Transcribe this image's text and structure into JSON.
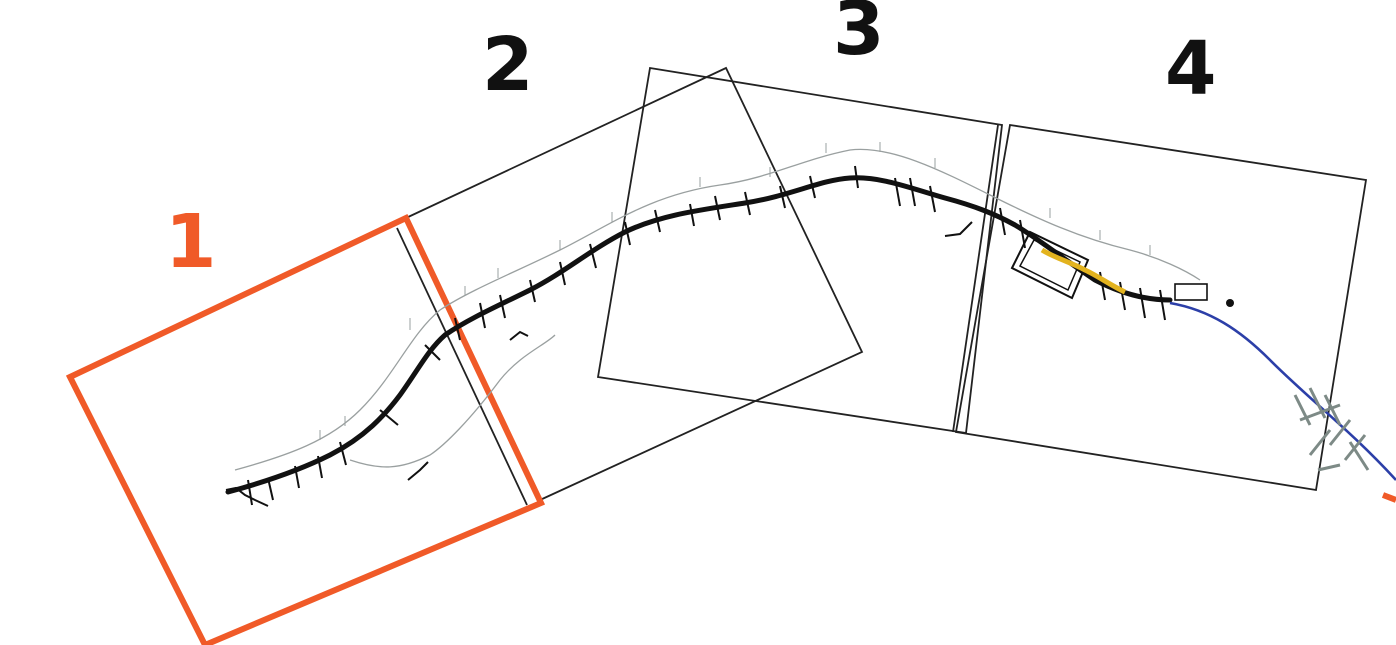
{
  "sheets": [
    {
      "label": "1",
      "highlighted": true
    },
    {
      "label": "2",
      "highlighted": false
    },
    {
      "label": "3",
      "highlighted": false
    },
    {
      "label": "4",
      "highlighted": false
    }
  ],
  "colors": {
    "highlight": "#f05a28",
    "label_default": "#111111",
    "sheet_outline": "#222222",
    "route_main": "#111111",
    "route_outline": "#9aa0a0",
    "route_extension": "#2c3fa8",
    "structure_accent": "#e3b31e",
    "hatch_marks": "#7d8a86"
  }
}
